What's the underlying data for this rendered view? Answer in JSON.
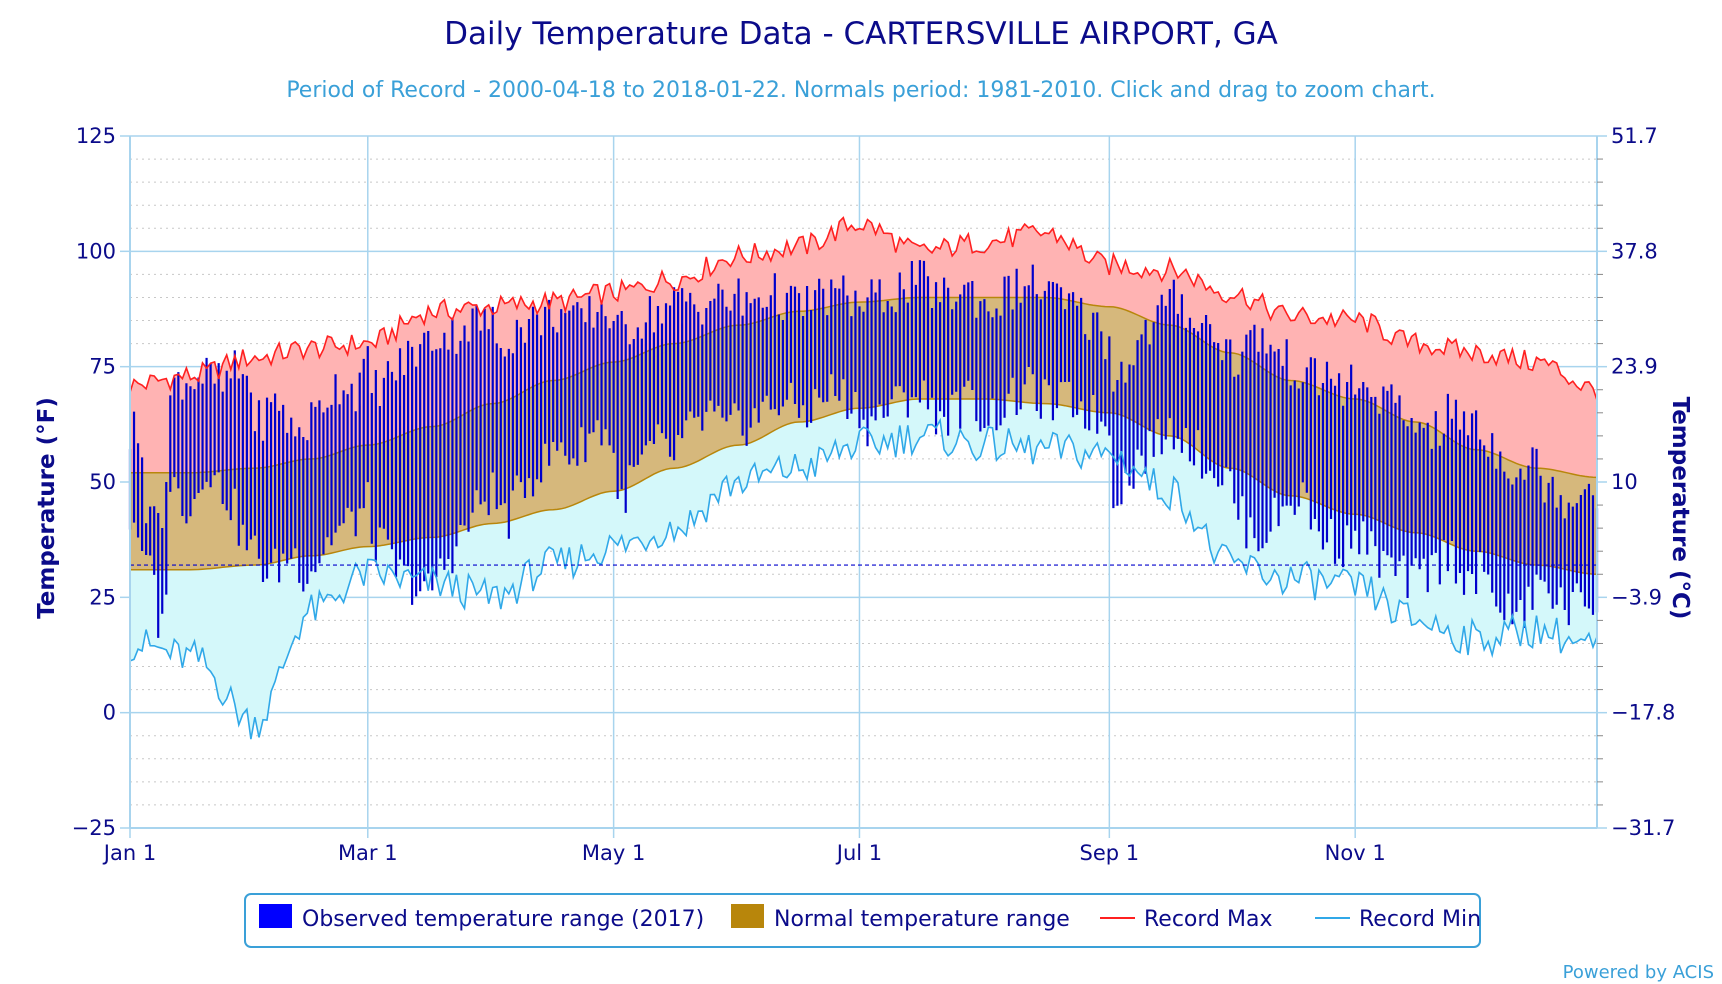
{
  "colors": {
    "observed": "#0000cc",
    "observed_legend": "#0000ff",
    "normal": "#b8860b",
    "normal_fill": "#d6b87c",
    "record_max": "#ff2020",
    "record_max_fill": "#ffb3b3",
    "record_min": "#30a8e8",
    "record_min_fill": "#d4f8fa",
    "axis_text": "#0b0b8a",
    "subtitle": "#3aa0d8",
    "grid": "#a8d4ee",
    "freeze_line": "#0000cc"
  },
  "credit": "Powered by ACIS",
  "chart_data": {
    "type": "line",
    "title": "Daily Temperature Data - CARTERSVILLE AIRPORT, GA",
    "subtitle": "Period of Record - 2000-04-18 to 2018-01-22. Normals period: 1981-2010. Click and drag to zoom chart.",
    "ylabel_left": "Temperature (°F)",
    "ylabel_right": "Temperature (°C)",
    "ylim": [
      -25,
      125
    ],
    "y_ticks_f": [
      "125",
      "100",
      "75",
      "50",
      "25",
      "0",
      "−25"
    ],
    "y_ticks_c": [
      "51.7",
      "37.8",
      "23.9",
      "10",
      "−3.9",
      "−17.8",
      "−31.7"
    ],
    "x_ticks": [
      {
        "label": "Jan 1",
        "day": 0
      },
      {
        "label": "Mar 1",
        "day": 59
      },
      {
        "label": "May 1",
        "day": 120
      },
      {
        "label": "Jul 1",
        "day": 181
      },
      {
        "label": "Sep 1",
        "day": 243
      },
      {
        "label": "Nov 1",
        "day": 304
      }
    ],
    "days_in_year": 365,
    "freezing_line_f": 32,
    "legend": {
      "observed": "Observed temperature range (2017)",
      "normal": "Normal temperature range",
      "record_max": "Record Max",
      "record_min": "Record Min"
    },
    "legend_position": "bottom-center",
    "series_note_days": [
      0,
      15,
      31,
      45,
      59,
      75,
      90,
      105,
      120,
      135,
      151,
      166,
      181,
      196,
      212,
      227,
      243,
      258,
      273,
      288,
      304,
      319,
      334,
      349,
      364
    ],
    "normal_max": [
      52,
      52,
      53,
      55,
      58,
      62,
      67,
      72,
      76,
      80,
      84,
      87,
      89,
      90,
      90,
      90,
      88,
      84,
      78,
      72,
      68,
      63,
      57,
      53,
      51
    ],
    "normal_min": [
      31,
      31,
      32,
      34,
      36,
      38,
      41,
      44,
      48,
      53,
      58,
      63,
      66,
      68,
      68,
      67,
      65,
      60,
      53,
      47,
      43,
      39,
      35,
      32,
      30
    ],
    "record_max": [
      71,
      73,
      77,
      79,
      80,
      87,
      88,
      89,
      91,
      94,
      99,
      101,
      106,
      100,
      102,
      104,
      97,
      96,
      91,
      86,
      85,
      80,
      78,
      76,
      70
    ],
    "record_min": [
      15,
      12,
      -2,
      22,
      30,
      28,
      25,
      32,
      36,
      40,
      50,
      53,
      58,
      60,
      58,
      57,
      56,
      48,
      32,
      29,
      27,
      20,
      16,
      18,
      14
    ],
    "observed_2017": [
      {
        "from_day": 0,
        "to_day": 9,
        "low": [
          42,
          42,
          40,
          31,
          33,
          30,
          28,
          20,
          18,
          30
        ],
        "high": [
          60,
          62,
          58,
          60,
          45,
          47,
          40,
          44,
          45,
          50
        ]
      },
      {
        "from_day": 10,
        "to_day": 30,
        "low": [
          50,
          47,
          45,
          47,
          55,
          50,
          48,
          45,
          38,
          35
        ],
        "high": [
          68,
          73,
          72,
          73,
          73,
          72,
          70,
          74,
          73,
          72
        ]
      },
      {
        "from_day": 31,
        "to_day": 59,
        "low": [
          35,
          30,
          32,
          35,
          30,
          33,
          38,
          40,
          42,
          45
        ],
        "high": [
          62,
          65,
          68,
          60,
          62,
          65,
          70,
          72,
          70,
          75
        ]
      },
      {
        "from_day": 60,
        "to_day": 90,
        "low": [
          38,
          35,
          30,
          28,
          25,
          30,
          35,
          40,
          45,
          48
        ],
        "high": [
          70,
          72,
          75,
          78,
          80,
          82,
          82,
          84,
          85,
          84
        ]
      },
      {
        "from_day": 91,
        "to_day": 120,
        "low": [
          45,
          42,
          50,
          52,
          55,
          58,
          55,
          60,
          62,
          58
        ],
        "high": [
          80,
          82,
          84,
          85,
          86,
          87,
          84,
          86,
          88,
          86
        ]
      },
      {
        "from_day": 121,
        "to_day": 151,
        "low": [
          45,
          50,
          55,
          58,
          55,
          60,
          62,
          65,
          60,
          63
        ],
        "high": [
          82,
          84,
          86,
          87,
          88,
          90,
          88,
          90,
          89,
          90
        ]
      },
      {
        "from_day": 152,
        "to_day": 181,
        "low": [
          62,
          64,
          66,
          68,
          66,
          65,
          68,
          70,
          68,
          66
        ],
        "high": [
          88,
          90,
          91,
          90,
          88,
          89,
          90,
          91,
          90,
          89
        ]
      },
      {
        "from_day": 182,
        "to_day": 212,
        "low": [
          62,
          64,
          66,
          68,
          70,
          66,
          64,
          66,
          68,
          64
        ],
        "high": [
          88,
          90,
          91,
          92,
          94,
          92,
          90,
          91,
          92,
          88
        ]
      },
      {
        "from_day": 213,
        "to_day": 243,
        "low": [
          64,
          66,
          68,
          70,
          68,
          66,
          68,
          66,
          64,
          62
        ],
        "high": [
          88,
          90,
          92,
          93,
          92,
          90,
          88,
          86,
          84,
          80
        ]
      },
      {
        "from_day": 244,
        "to_day": 273,
        "low": [
          48,
          50,
          55,
          58,
          60,
          62,
          58,
          55,
          52,
          50
        ],
        "high": [
          72,
          76,
          80,
          84,
          88,
          90,
          86,
          84,
          82,
          78
        ]
      },
      {
        "from_day": 274,
        "to_day": 304,
        "low": [
          45,
          40,
          38,
          42,
          45,
          48,
          40,
          38,
          36,
          38
        ],
        "high": [
          76,
          80,
          82,
          78,
          76,
          74,
          72,
          74,
          70,
          72
        ]
      },
      {
        "from_day": 305,
        "to_day": 334,
        "low": [
          38,
          35,
          32,
          30,
          28,
          30,
          32,
          35,
          30,
          28
        ],
        "high": [
          68,
          70,
          68,
          65,
          62,
          64,
          60,
          66,
          62,
          65
        ]
      },
      {
        "from_day": 335,
        "to_day": 364,
        "low": [
          30,
          26,
          22,
          20,
          25,
          28,
          24,
          22,
          26,
          22
        ],
        "high": [
          60,
          58,
          55,
          52,
          55,
          50,
          48,
          46,
          50,
          48
        ]
      }
    ]
  }
}
